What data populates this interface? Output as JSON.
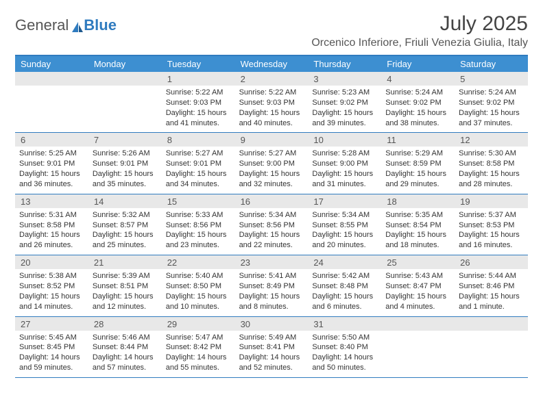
{
  "brand": {
    "general": "General",
    "blue": "Blue"
  },
  "header": {
    "month_title": "July 2025",
    "location": "Orcenico Inferiore, Friuli Venezia Giulia, Italy"
  },
  "colors": {
    "accent": "#2f7bbf",
    "header_bg": "#3d8fd1",
    "daynum_bg": "#e8e8e8",
    "text": "#333333"
  },
  "dow": [
    "Sunday",
    "Monday",
    "Tuesday",
    "Wednesday",
    "Thursday",
    "Friday",
    "Saturday"
  ],
  "weeks": [
    [
      {
        "n": "",
        "sunrise": "",
        "sunset": "",
        "daylight": ""
      },
      {
        "n": "",
        "sunrise": "",
        "sunset": "",
        "daylight": ""
      },
      {
        "n": "1",
        "sunrise": "Sunrise: 5:22 AM",
        "sunset": "Sunset: 9:03 PM",
        "daylight": "Daylight: 15 hours and 41 minutes."
      },
      {
        "n": "2",
        "sunrise": "Sunrise: 5:22 AM",
        "sunset": "Sunset: 9:03 PM",
        "daylight": "Daylight: 15 hours and 40 minutes."
      },
      {
        "n": "3",
        "sunrise": "Sunrise: 5:23 AM",
        "sunset": "Sunset: 9:02 PM",
        "daylight": "Daylight: 15 hours and 39 minutes."
      },
      {
        "n": "4",
        "sunrise": "Sunrise: 5:24 AM",
        "sunset": "Sunset: 9:02 PM",
        "daylight": "Daylight: 15 hours and 38 minutes."
      },
      {
        "n": "5",
        "sunrise": "Sunrise: 5:24 AM",
        "sunset": "Sunset: 9:02 PM",
        "daylight": "Daylight: 15 hours and 37 minutes."
      }
    ],
    [
      {
        "n": "6",
        "sunrise": "Sunrise: 5:25 AM",
        "sunset": "Sunset: 9:01 PM",
        "daylight": "Daylight: 15 hours and 36 minutes."
      },
      {
        "n": "7",
        "sunrise": "Sunrise: 5:26 AM",
        "sunset": "Sunset: 9:01 PM",
        "daylight": "Daylight: 15 hours and 35 minutes."
      },
      {
        "n": "8",
        "sunrise": "Sunrise: 5:27 AM",
        "sunset": "Sunset: 9:01 PM",
        "daylight": "Daylight: 15 hours and 34 minutes."
      },
      {
        "n": "9",
        "sunrise": "Sunrise: 5:27 AM",
        "sunset": "Sunset: 9:00 PM",
        "daylight": "Daylight: 15 hours and 32 minutes."
      },
      {
        "n": "10",
        "sunrise": "Sunrise: 5:28 AM",
        "sunset": "Sunset: 9:00 PM",
        "daylight": "Daylight: 15 hours and 31 minutes."
      },
      {
        "n": "11",
        "sunrise": "Sunrise: 5:29 AM",
        "sunset": "Sunset: 8:59 PM",
        "daylight": "Daylight: 15 hours and 29 minutes."
      },
      {
        "n": "12",
        "sunrise": "Sunrise: 5:30 AM",
        "sunset": "Sunset: 8:58 PM",
        "daylight": "Daylight: 15 hours and 28 minutes."
      }
    ],
    [
      {
        "n": "13",
        "sunrise": "Sunrise: 5:31 AM",
        "sunset": "Sunset: 8:58 PM",
        "daylight": "Daylight: 15 hours and 26 minutes."
      },
      {
        "n": "14",
        "sunrise": "Sunrise: 5:32 AM",
        "sunset": "Sunset: 8:57 PM",
        "daylight": "Daylight: 15 hours and 25 minutes."
      },
      {
        "n": "15",
        "sunrise": "Sunrise: 5:33 AM",
        "sunset": "Sunset: 8:56 PM",
        "daylight": "Daylight: 15 hours and 23 minutes."
      },
      {
        "n": "16",
        "sunrise": "Sunrise: 5:34 AM",
        "sunset": "Sunset: 8:56 PM",
        "daylight": "Daylight: 15 hours and 22 minutes."
      },
      {
        "n": "17",
        "sunrise": "Sunrise: 5:34 AM",
        "sunset": "Sunset: 8:55 PM",
        "daylight": "Daylight: 15 hours and 20 minutes."
      },
      {
        "n": "18",
        "sunrise": "Sunrise: 5:35 AM",
        "sunset": "Sunset: 8:54 PM",
        "daylight": "Daylight: 15 hours and 18 minutes."
      },
      {
        "n": "19",
        "sunrise": "Sunrise: 5:37 AM",
        "sunset": "Sunset: 8:53 PM",
        "daylight": "Daylight: 15 hours and 16 minutes."
      }
    ],
    [
      {
        "n": "20",
        "sunrise": "Sunrise: 5:38 AM",
        "sunset": "Sunset: 8:52 PM",
        "daylight": "Daylight: 15 hours and 14 minutes."
      },
      {
        "n": "21",
        "sunrise": "Sunrise: 5:39 AM",
        "sunset": "Sunset: 8:51 PM",
        "daylight": "Daylight: 15 hours and 12 minutes."
      },
      {
        "n": "22",
        "sunrise": "Sunrise: 5:40 AM",
        "sunset": "Sunset: 8:50 PM",
        "daylight": "Daylight: 15 hours and 10 minutes."
      },
      {
        "n": "23",
        "sunrise": "Sunrise: 5:41 AM",
        "sunset": "Sunset: 8:49 PM",
        "daylight": "Daylight: 15 hours and 8 minutes."
      },
      {
        "n": "24",
        "sunrise": "Sunrise: 5:42 AM",
        "sunset": "Sunset: 8:48 PM",
        "daylight": "Daylight: 15 hours and 6 minutes."
      },
      {
        "n": "25",
        "sunrise": "Sunrise: 5:43 AM",
        "sunset": "Sunset: 8:47 PM",
        "daylight": "Daylight: 15 hours and 4 minutes."
      },
      {
        "n": "26",
        "sunrise": "Sunrise: 5:44 AM",
        "sunset": "Sunset: 8:46 PM",
        "daylight": "Daylight: 15 hours and 1 minute."
      }
    ],
    [
      {
        "n": "27",
        "sunrise": "Sunrise: 5:45 AM",
        "sunset": "Sunset: 8:45 PM",
        "daylight": "Daylight: 14 hours and 59 minutes."
      },
      {
        "n": "28",
        "sunrise": "Sunrise: 5:46 AM",
        "sunset": "Sunset: 8:44 PM",
        "daylight": "Daylight: 14 hours and 57 minutes."
      },
      {
        "n": "29",
        "sunrise": "Sunrise: 5:47 AM",
        "sunset": "Sunset: 8:42 PM",
        "daylight": "Daylight: 14 hours and 55 minutes."
      },
      {
        "n": "30",
        "sunrise": "Sunrise: 5:49 AM",
        "sunset": "Sunset: 8:41 PM",
        "daylight": "Daylight: 14 hours and 52 minutes."
      },
      {
        "n": "31",
        "sunrise": "Sunrise: 5:50 AM",
        "sunset": "Sunset: 8:40 PM",
        "daylight": "Daylight: 14 hours and 50 minutes."
      },
      {
        "n": "",
        "sunrise": "",
        "sunset": "",
        "daylight": ""
      },
      {
        "n": "",
        "sunrise": "",
        "sunset": "",
        "daylight": ""
      }
    ]
  ]
}
